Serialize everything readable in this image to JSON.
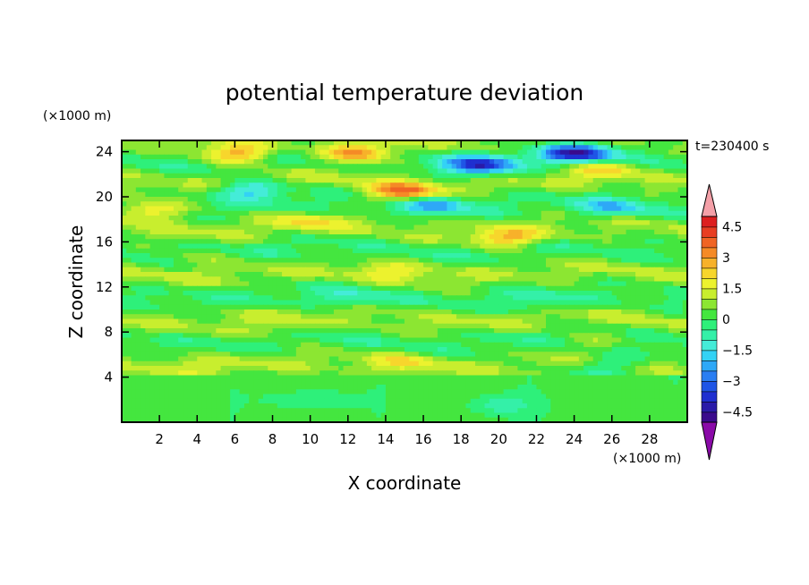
{
  "chart_data": {
    "type": "heatmap",
    "title": "potential temperature deviation",
    "xlabel": "X coordinate",
    "ylabel": "Z coordinate",
    "x_unit": "(×1000 m)",
    "y_unit": "(×1000 m)",
    "time_label": "t=230400 s",
    "xlim": [
      0,
      30
    ],
    "ylim": [
      0,
      25
    ],
    "x_ticks": [
      2,
      4,
      6,
      8,
      10,
      12,
      14,
      16,
      18,
      20,
      22,
      24,
      26,
      28
    ],
    "y_ticks": [
      4,
      8,
      12,
      16,
      20,
      24
    ],
    "colorbar": {
      "levels": [
        -5,
        -4.5,
        -4,
        -3.5,
        -3,
        -2.5,
        -2,
        -1.5,
        -1,
        -0.5,
        0,
        0.5,
        1,
        1.5,
        2,
        2.5,
        3,
        3.5,
        4,
        4.5,
        5
      ],
      "tick_labels": [
        "4.5",
        "3",
        "1.5",
        "0",
        "−1.5",
        "−3",
        "−4.5"
      ],
      "tick_values": [
        4.5,
        3,
        1.5,
        0,
        -1.5,
        -3,
        -4.5
      ],
      "colors": [
        "#3a0a8c",
        "#2a1aa8",
        "#1f2fd0",
        "#1f55e6",
        "#2a7ef2",
        "#2ea8f7",
        "#33d2f5",
        "#44ecd8",
        "#34f0a8",
        "#2ef07a",
        "#44e63f",
        "#8ce632",
        "#c8ee2e",
        "#ecf22e",
        "#f7d62c",
        "#f7b12a",
        "#f58a26",
        "#f06424",
        "#e83e22",
        "#dd1f1f"
      ],
      "over_color": "#f4a0a8",
      "under_color": "#8a0aa8"
    },
    "field_features": [
      {
        "x": 6.2,
        "z": 23.8,
        "value": 3.0
      },
      {
        "x": 12.5,
        "z": 23.9,
        "value": 3.5
      },
      {
        "x": 15.0,
        "z": 20.4,
        "value": 3.5
      },
      {
        "x": 1.5,
        "z": 18.8,
        "value": 2.5
      },
      {
        "x": 19.0,
        "z": 22.8,
        "value": -3.5
      },
      {
        "x": 24.2,
        "z": 23.8,
        "value": -4.0
      },
      {
        "x": 25.5,
        "z": 22.5,
        "value": 2.0
      },
      {
        "x": 6.8,
        "z": 20.6,
        "value": -2.0
      },
      {
        "x": 16.5,
        "z": 19.3,
        "value": -2.0
      },
      {
        "x": 26.0,
        "z": 19.0,
        "value": -1.5
      },
      {
        "x": 20.5,
        "z": 16.3,
        "value": 2.5
      },
      {
        "x": 10.0,
        "z": 17.8,
        "value": 1.5
      },
      {
        "x": 14.5,
        "z": 13.4,
        "value": 1.5
      },
      {
        "x": 4.0,
        "z": 14.5,
        "value": 1.0
      },
      {
        "x": 8.0,
        "z": 8.2,
        "value": 1.0
      },
      {
        "x": 25.0,
        "z": 7.3,
        "value": 1.0
      },
      {
        "x": 15.0,
        "z": 5.3,
        "value": 1.5
      },
      {
        "x": 4.0,
        "z": 5.0,
        "value": 1.0
      },
      {
        "x": 26.0,
        "z": 5.2,
        "value": -1.0
      },
      {
        "x": 12.0,
        "z": 11.0,
        "value": -0.6
      },
      {
        "x": 22.0,
        "z": 10.5,
        "value": -0.6
      },
      {
        "x": 10.0,
        "z": 2.0,
        "value": -0.6
      },
      {
        "x": 20.0,
        "z": 1.5,
        "value": -0.6
      }
    ]
  }
}
